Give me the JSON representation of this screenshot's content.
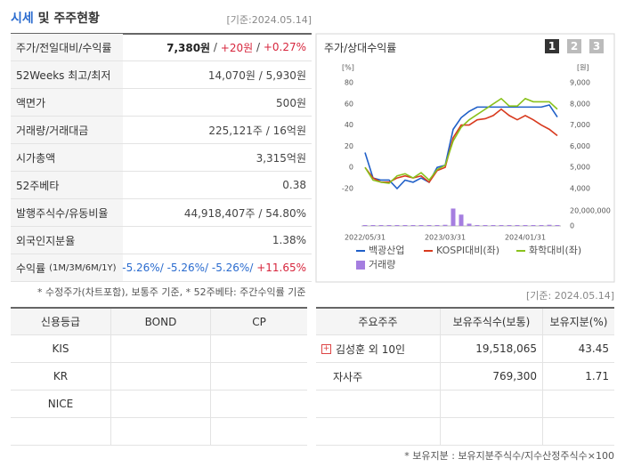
{
  "header": {
    "title_highlight": "시세",
    "title_rest": "및 주주현황",
    "date": "[기준:2024.05.14]"
  },
  "summary": {
    "rows": [
      {
        "label": "주가/전일대비/수익률",
        "parts": [
          {
            "text": "7,380원",
            "style": "bold"
          },
          {
            "text": " / ",
            "style": "plain"
          },
          {
            "text": "+20원",
            "style": "up"
          },
          {
            "text": " / ",
            "style": "plain"
          },
          {
            "text": "+0.27%",
            "style": "up"
          }
        ]
      },
      {
        "label": "52Weeks 최고/최저",
        "parts": [
          {
            "text": "14,070원 / 5,930원",
            "style": "plain"
          }
        ]
      },
      {
        "label": "액면가",
        "parts": [
          {
            "text": "500원",
            "style": "plain"
          }
        ]
      },
      {
        "label": "거래량/거래대금",
        "parts": [
          {
            "text": "225,121주 / 16억원",
            "style": "plain"
          }
        ]
      },
      {
        "label": "시가총액",
        "parts": [
          {
            "text": "3,315억원",
            "style": "plain"
          }
        ]
      },
      {
        "label": "52주베타",
        "parts": [
          {
            "text": "0.38",
            "style": "plain"
          }
        ]
      },
      {
        "label": "발행주식수/유동비율",
        "parts": [
          {
            "text": "44,918,407주 / 54.80%",
            "style": "plain"
          }
        ]
      },
      {
        "label": "외국인지분율",
        "parts": [
          {
            "text": "1.38%",
            "style": "plain"
          }
        ]
      },
      {
        "label": "수익률",
        "label_sub": "(1M/3M/6M/1Y)",
        "parts": [
          {
            "text": "-5.26%/ ",
            "style": "down"
          },
          {
            "text": "-5.26%/ ",
            "style": "down"
          },
          {
            "text": "-5.26%/ ",
            "style": "down"
          },
          {
            "text": "+11.65%",
            "style": "up"
          }
        ]
      }
    ],
    "note": "* 수정주가(차트포함), 보통주 기준, * 52주베타: 주간수익률 기준"
  },
  "chart_panel": {
    "title": "주가/상대수익률",
    "tabs": [
      "1",
      "2",
      "3"
    ]
  },
  "chart_data": {
    "type": "line",
    "x": [
      "2022/05/31",
      null,
      null,
      null,
      null,
      null,
      null,
      null,
      null,
      null,
      "2023/03/31",
      null,
      null,
      null,
      null,
      null,
      null,
      null,
      null,
      null,
      "2024/01/31",
      null,
      null,
      null,
      null
    ],
    "y_unit": "[%]",
    "y2_unit": "[원]",
    "ylim": [
      -20,
      80
    ],
    "yticks": [
      80,
      60,
      40,
      20,
      0,
      -20
    ],
    "y2lim": [
      4000,
      9000
    ],
    "y2ticks": [
      {
        "value": 9000,
        "label": "9,000"
      },
      {
        "value": 8000,
        "label": "8,000"
      },
      {
        "value": 7000,
        "label": "7,000"
      },
      {
        "value": 6000,
        "label": "6,000"
      },
      {
        "value": 5000,
        "label": "5,000"
      },
      {
        "value": 4000,
        "label": "4,000"
      }
    ],
    "vlim": [
      0,
      20000000
    ],
    "vticks": [
      {
        "value": 20000000,
        "label": "20,000,000"
      },
      0
    ],
    "series": [
      {
        "name": "백광산업",
        "color": "#1f5fc8",
        "axis": "y2",
        "values": [
          5700,
          4500,
          4400,
          4400,
          4000,
          4400,
          4300,
          4500,
          4300,
          5000,
          5100,
          6800,
          7350,
          7650,
          7850,
          7850,
          7850,
          7850,
          7850,
          7850,
          7850,
          7850,
          7850,
          7950,
          7380
        ]
      },
      {
        "name": "KOSPI대비(좌)",
        "color": "#d83a1e",
        "values": [
          0,
          -10,
          -14,
          -14,
          -10,
          -8,
          -10,
          -8,
          -14,
          -3,
          0,
          28,
          40,
          40,
          45,
          46,
          49,
          55,
          49,
          45,
          49,
          45,
          40,
          36,
          30
        ]
      },
      {
        "name": "화학대비(좌)",
        "color": "#8ac21d",
        "values": [
          0,
          -12,
          -14,
          -15,
          -8,
          -6,
          -10,
          -5,
          -12,
          -2,
          2,
          25,
          38,
          45,
          50,
          55,
          60,
          65,
          58,
          58,
          65,
          62,
          62,
          62,
          55
        ]
      }
    ],
    "volume": {
      "name": "거래량",
      "color": "#a57ee0",
      "values": [
        300000,
        300000,
        500000,
        300000,
        300000,
        300000,
        300000,
        300000,
        700000,
        900000,
        1500000,
        23000000,
        15000000,
        3000000,
        500000,
        500000,
        500000,
        300000,
        300000,
        300000,
        300000,
        1000000,
        300000,
        1500000,
        300000
      ]
    }
  },
  "date2": "[기준: 2024.05.14]",
  "credit": {
    "columns": [
      "신용등급",
      "BOND",
      "CP"
    ],
    "rows": [
      "KIS",
      "KR",
      "NICE"
    ]
  },
  "shareholders": {
    "columns": [
      "주요주주",
      "보유주식수(보통)",
      "보유지분(%)"
    ],
    "rows": [
      [
        "김성훈 외 10인",
        "19,518,065",
        "43.45"
      ],
      [
        "자사주",
        "769,300",
        "1.71"
      ]
    ]
  },
  "footnote": "* 보유지분 : 보유지분주식수/지수산정주식수×100"
}
